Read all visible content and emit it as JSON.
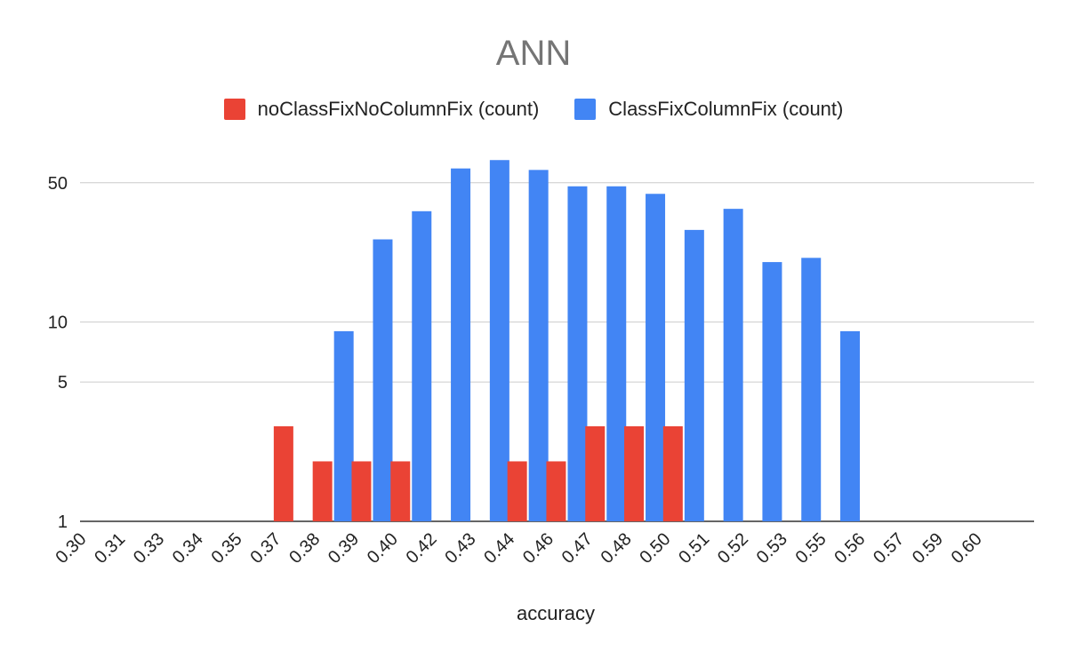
{
  "chart_data": {
    "type": "bar",
    "title": "ANN",
    "xlabel": "accuracy",
    "ylabel": "",
    "y_scale": "log",
    "ylim": [
      1,
      80
    ],
    "y_ticks": [
      1,
      5,
      10,
      50
    ],
    "categories": [
      "0.30",
      "0.31",
      "0.33",
      "0.34",
      "0.35",
      "0.37",
      "0.38",
      "0.39",
      "0.40",
      "0.42",
      "0.43",
      "0.44",
      "0.46",
      "0.47",
      "0.48",
      "0.50",
      "0.51",
      "0.52",
      "0.53",
      "0.55",
      "0.56",
      "0.57",
      "0.59",
      "0.60"
    ],
    "series": [
      {
        "name": "noClassFixNoColumnFix (count)",
        "color": "#ea4335",
        "values": [
          null,
          null,
          null,
          null,
          null,
          3,
          2,
          2,
          2,
          null,
          null,
          2,
          2,
          3,
          3,
          3,
          null,
          null,
          null,
          null,
          null,
          null,
          null,
          null
        ]
      },
      {
        "name": "ClassFixColumnFix (count)",
        "color": "#4285f4",
        "values": [
          null,
          null,
          null,
          null,
          null,
          null,
          9,
          26,
          36,
          59,
          65,
          58,
          48,
          48,
          44,
          29,
          37,
          20,
          21,
          9,
          null,
          null,
          null,
          null
        ]
      }
    ],
    "grid": true,
    "legend_position": "top"
  }
}
